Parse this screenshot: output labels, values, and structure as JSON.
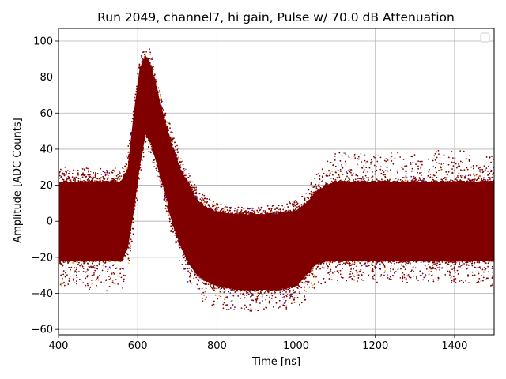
{
  "chart_data": {
    "type": "scatter",
    "title": "Run 2049, channel7, hi gain, Pulse w/ 70.0 dB Attenuation",
    "xlabel": "Time [ns]",
    "ylabel": "Amplitude [ADC Counts]",
    "xlim": [
      400,
      1500
    ],
    "ylim": [
      -63,
      107
    ],
    "xticks": [
      400,
      600,
      800,
      1000,
      1200,
      1400
    ],
    "yticks": [
      -60,
      -40,
      -20,
      0,
      20,
      40,
      60,
      80,
      100
    ],
    "grid": true,
    "legend": {
      "position": "top-right",
      "entries": []
    },
    "colors": {
      "primary": "#800000",
      "sparse": [
        "#1f1fff",
        "#ffbf00",
        "#808080"
      ]
    },
    "series": [
      {
        "description_free": true,
        "x": [
          400,
          560,
          575,
          590,
          605,
          620,
          635,
          650,
          670,
          690,
          710,
          730,
          750,
          770,
          800,
          850,
          900,
          950,
          1000,
          1025,
          1050,
          1075,
          1100,
          1150,
          1200,
          1300,
          1400,
          1500
        ],
        "y_max": [
          22,
          22,
          30,
          60,
          85,
          92,
          86,
          72,
          55,
          40,
          28,
          20,
          12,
          8,
          5,
          4,
          4,
          4,
          6,
          10,
          16,
          20,
          22,
          22,
          22,
          22,
          22,
          22
        ],
        "y_min": [
          -22,
          -22,
          -15,
          5,
          30,
          48,
          42,
          30,
          15,
          -3,
          -15,
          -24,
          -30,
          -33,
          -36,
          -38,
          -38,
          -38,
          -36,
          -30,
          -24,
          -22,
          -22,
          -22,
          -22,
          -22,
          -22,
          -22
        ],
        "outlier_max": [
          30,
          30,
          40,
          68,
          92,
          99,
          94,
          80,
          62,
          48,
          36,
          26,
          18,
          14,
          10,
          8,
          8,
          9,
          12,
          16,
          26,
          34,
          38,
          38,
          38,
          38,
          40,
          36
        ],
        "outlier_min": [
          -36,
          -40,
          -28,
          -5,
          22,
          42,
          35,
          22,
          6,
          -12,
          -28,
          -36,
          -42,
          -46,
          -48,
          -50,
          -50,
          -50,
          -48,
          -44,
          -36,
          -34,
          -34,
          -34,
          -34,
          -34,
          -34,
          -36
        ]
      }
    ]
  }
}
